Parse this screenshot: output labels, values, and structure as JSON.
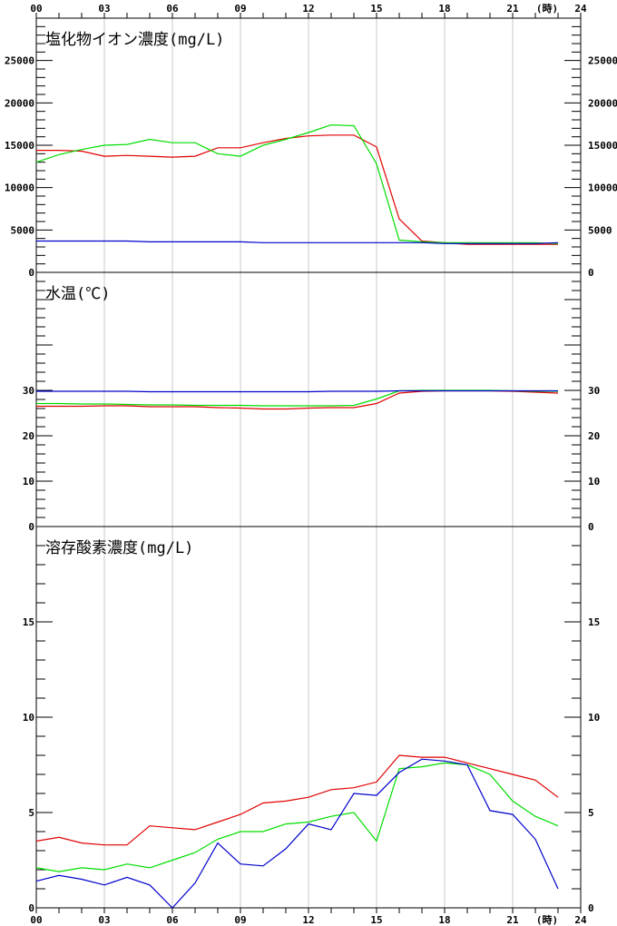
{
  "top_axis": {
    "ticks": [
      "00",
      "03",
      "06",
      "09",
      "12",
      "15",
      "18",
      "21",
      "24"
    ],
    "unit": "(時)"
  },
  "bottom_axis": {
    "ticks": [
      "00",
      "03",
      "06",
      "09",
      "12",
      "15",
      "18",
      "21",
      "24"
    ],
    "unit": "(時)"
  },
  "colors": {
    "series_a": "#e00000",
    "series_b": "#00dd00",
    "series_c": "#0000cc",
    "grid": "#c8c8c8",
    "frame": "#000000"
  },
  "chart_data": [
    {
      "type": "line",
      "title": "塩化物イオン濃度(mg/L)",
      "xlim": [
        0,
        24
      ],
      "ylim": [
        0,
        30000
      ],
      "yticks": [
        "0",
        "5000",
        "10000",
        "15000",
        "20000",
        "25000"
      ],
      "x": [
        0,
        1,
        2,
        3,
        4,
        5,
        6,
        7,
        8,
        9,
        10,
        11,
        12,
        13,
        14,
        15,
        16,
        17,
        18,
        19,
        20,
        21,
        22,
        23
      ],
      "series": [
        {
          "color": "#e00000",
          "values": [
            14400,
            14400,
            14300,
            13700,
            13800,
            13700,
            13600,
            13700,
            14700,
            14700,
            15300,
            15800,
            16100,
            16200,
            16200,
            14800,
            6300,
            3700,
            3500,
            3300,
            3300,
            3300,
            3300,
            3300
          ]
        },
        {
          "color": "#00dd00",
          "values": [
            13000,
            13900,
            14500,
            15000,
            15100,
            15700,
            15300,
            15300,
            14000,
            13700,
            15000,
            15700,
            16500,
            17400,
            17300,
            12800,
            3800,
            3600,
            3500,
            3500,
            3500,
            3500,
            3500,
            3400
          ]
        },
        {
          "color": "#0000cc",
          "values": [
            3700,
            3700,
            3700,
            3700,
            3700,
            3600,
            3600,
            3600,
            3600,
            3600,
            3500,
            3500,
            3500,
            3500,
            3500,
            3500,
            3500,
            3500,
            3400,
            3400,
            3400,
            3400,
            3400,
            3500
          ]
        }
      ]
    },
    {
      "type": "line",
      "title": "水温(℃)",
      "xlim": [
        0,
        24
      ],
      "ylim": [
        0,
        56
      ],
      "yticks": [
        "0",
        "10",
        "20",
        "30"
      ],
      "x": [
        0,
        1,
        2,
        3,
        4,
        5,
        6,
        7,
        8,
        9,
        10,
        11,
        12,
        13,
        14,
        15,
        16,
        17,
        18,
        19,
        20,
        21,
        22,
        23
      ],
      "series": [
        {
          "color": "#e00000",
          "values": [
            26.5,
            26.5,
            26.5,
            26.6,
            26.6,
            26.4,
            26.4,
            26.4,
            26.2,
            26.1,
            25.9,
            25.9,
            26.1,
            26.2,
            26.2,
            27.1,
            29.4,
            29.8,
            29.9,
            29.9,
            29.9,
            29.8,
            29.6,
            29.4
          ]
        },
        {
          "color": "#00dd00",
          "values": [
            27.1,
            27.1,
            27.0,
            27.0,
            26.9,
            26.8,
            26.8,
            26.7,
            26.7,
            26.7,
            26.6,
            26.6,
            26.6,
            26.6,
            26.7,
            28.1,
            29.9,
            30.0,
            30.0,
            30.0,
            30.0,
            29.9,
            29.8,
            29.8
          ]
        },
        {
          "color": "#0000cc",
          "values": [
            29.8,
            29.8,
            29.8,
            29.8,
            29.8,
            29.7,
            29.7,
            29.7,
            29.7,
            29.7,
            29.7,
            29.7,
            29.7,
            29.8,
            29.8,
            29.8,
            29.9,
            29.9,
            29.9,
            29.9,
            29.9,
            29.9,
            29.9,
            29.9
          ]
        }
      ]
    },
    {
      "type": "line",
      "title": "溶存酸素濃度(mg/L)",
      "xlim": [
        0,
        24
      ],
      "ylim": [
        0,
        20
      ],
      "yticks": [
        "0",
        "5",
        "10",
        "15"
      ],
      "x": [
        0,
        1,
        2,
        3,
        4,
        5,
        6,
        7,
        8,
        9,
        10,
        11,
        12,
        13,
        14,
        15,
        16,
        17,
        18,
        19,
        20,
        21,
        22,
        23
      ],
      "series": [
        {
          "color": "#e00000",
          "values": [
            3.5,
            3.7,
            3.4,
            3.3,
            3.3,
            4.3,
            4.2,
            4.1,
            4.5,
            4.9,
            5.5,
            5.6,
            5.8,
            6.2,
            6.3,
            6.6,
            8.0,
            7.9,
            7.9,
            7.6,
            7.3,
            7.0,
            6.7,
            5.8
          ]
        },
        {
          "color": "#00dd00",
          "values": [
            2.1,
            1.9,
            2.1,
            2.0,
            2.3,
            2.1,
            2.5,
            2.9,
            3.6,
            4.0,
            4.0,
            4.4,
            4.5,
            4.8,
            5.0,
            3.5,
            7.3,
            7.4,
            7.6,
            7.5,
            7.0,
            5.6,
            4.8,
            4.3
          ]
        },
        {
          "color": "#0000cc",
          "values": [
            1.4,
            1.7,
            1.5,
            1.2,
            1.6,
            1.2,
            0.0,
            1.3,
            3.4,
            2.3,
            2.2,
            3.1,
            4.4,
            4.1,
            6.0,
            5.9,
            7.1,
            7.8,
            7.7,
            7.5,
            5.1,
            4.9,
            3.6,
            1.0
          ]
        }
      ]
    }
  ]
}
